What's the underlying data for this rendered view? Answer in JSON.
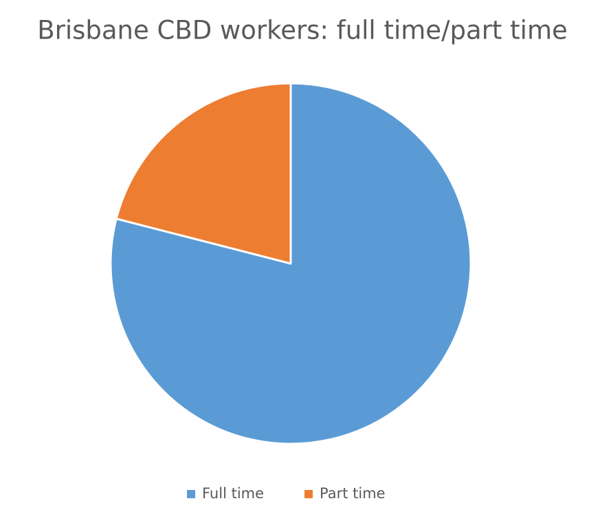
{
  "chart_data": {
    "type": "pie",
    "title": "Brisbane CBD workers: full time/part time",
    "categories": [
      "Full time",
      "Part time"
    ],
    "values": [
      79,
      21
    ],
    "colors": [
      "#5b9bd5",
      "#ed7d31"
    ],
    "legend": "bottom"
  }
}
